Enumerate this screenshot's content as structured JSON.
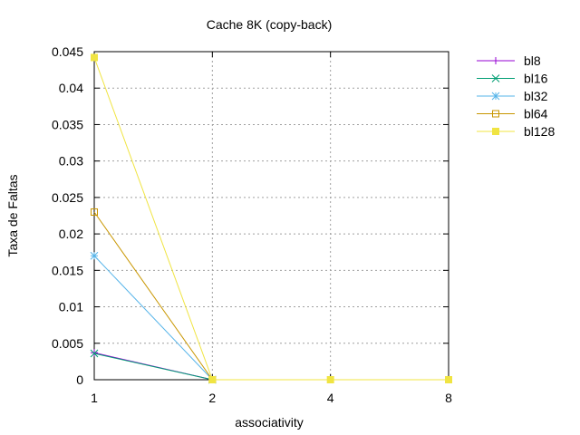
{
  "chart_data": {
    "type": "line",
    "title": "Cache 8K (copy-back)",
    "xlabel": "associativity",
    "ylabel": "Taxa de Faltas",
    "x": [
      "1",
      "2",
      "4",
      "8"
    ],
    "ylim": [
      0,
      0.045
    ],
    "yticks": [
      "0",
      "0.005",
      "0.01",
      "0.015",
      "0.02",
      "0.025",
      "0.03",
      "0.035",
      "0.04",
      "0.045"
    ],
    "grid": true,
    "legend_position": "outside-right-top",
    "series": [
      {
        "name": "bl8",
        "color": "#9400d3",
        "marker": "plus",
        "values": [
          0.0037,
          0.0,
          null,
          null
        ]
      },
      {
        "name": "bl16",
        "color": "#009e73",
        "marker": "cross",
        "values": [
          0.0036,
          0.0,
          null,
          null
        ]
      },
      {
        "name": "bl32",
        "color": "#56b4e9",
        "marker": "star",
        "values": [
          0.017,
          0.0,
          null,
          null
        ]
      },
      {
        "name": "bl64",
        "color": "#c89600",
        "marker": "open-square",
        "values": [
          0.023,
          0.0,
          null,
          null
        ]
      },
      {
        "name": "bl128",
        "color": "#f0e442",
        "marker": "filled-square",
        "values": [
          0.0442,
          0.0,
          0.0,
          0.0
        ]
      }
    ]
  }
}
